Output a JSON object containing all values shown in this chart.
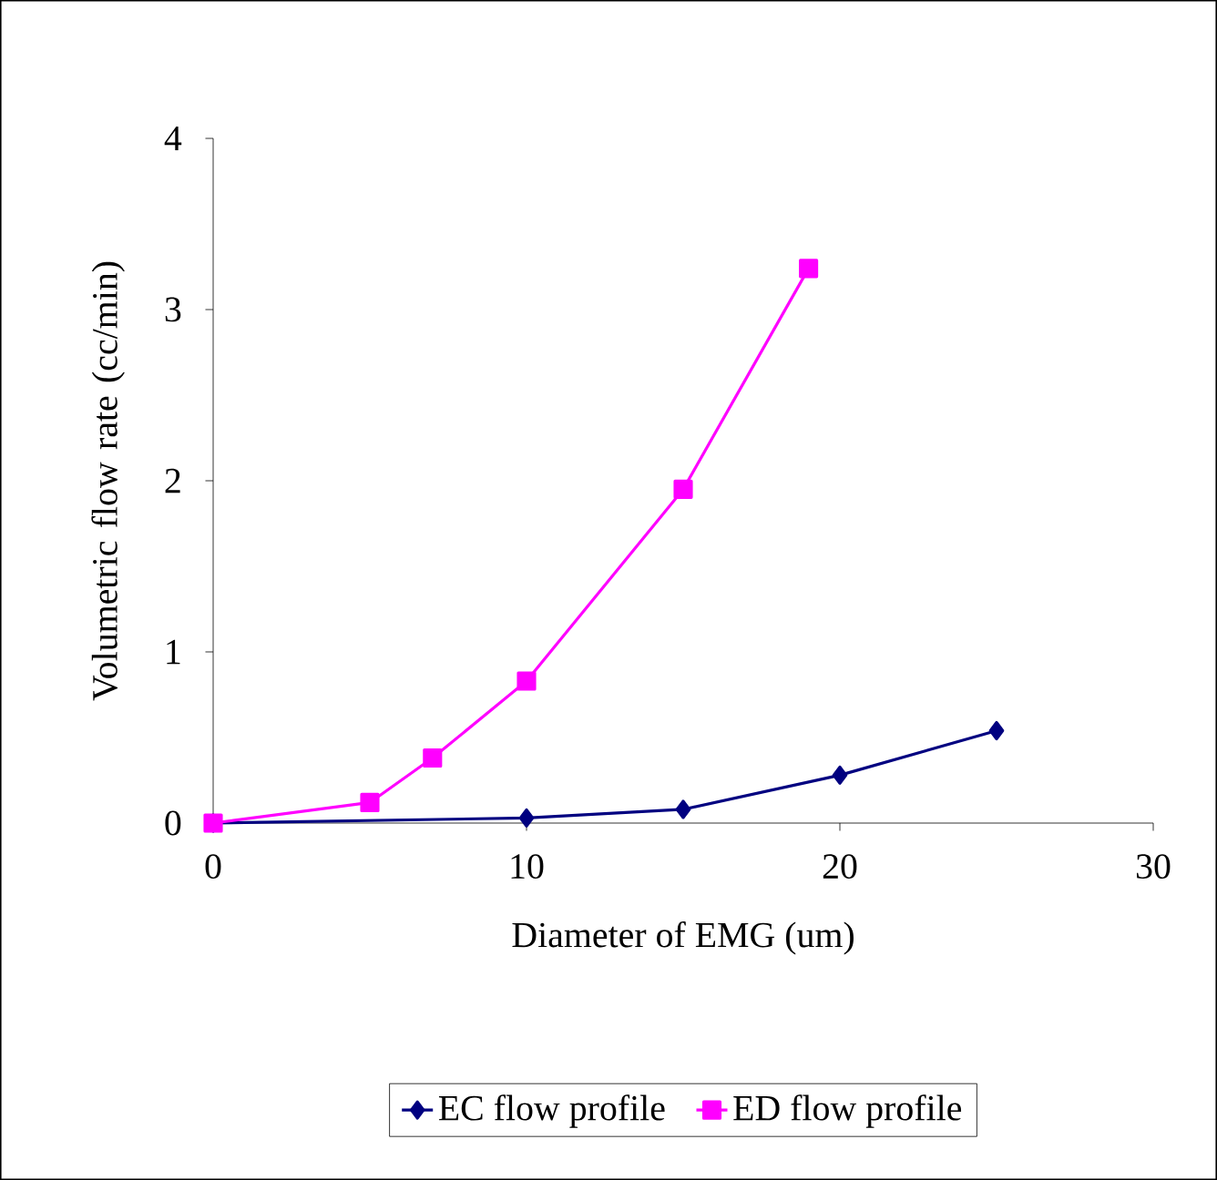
{
  "chart_data": {
    "type": "line",
    "xlabel": "Diameter of EMG (um)",
    "ylabel": "Volumetric flow rate (cc/min)",
    "xlim": [
      0,
      30
    ],
    "xticks": [
      0,
      10,
      20,
      30
    ],
    "ylim": [
      0,
      4
    ],
    "yticks": [
      0,
      1,
      2,
      3,
      4
    ],
    "grid": false,
    "legend": "bottom",
    "series": [
      {
        "name": "EC flow profile",
        "color": "#000080",
        "marker": "diamond",
        "x": [
          0,
          10,
          15,
          20,
          25
        ],
        "values": [
          0,
          0.03,
          0.08,
          0.28,
          0.54
        ]
      },
      {
        "name": "ED flow profile",
        "color": "#ff00ff",
        "marker": "square",
        "x": [
          0,
          5,
          7,
          10,
          15,
          19
        ],
        "values": [
          0,
          0.12,
          0.38,
          0.83,
          1.95,
          3.24
        ]
      }
    ]
  }
}
